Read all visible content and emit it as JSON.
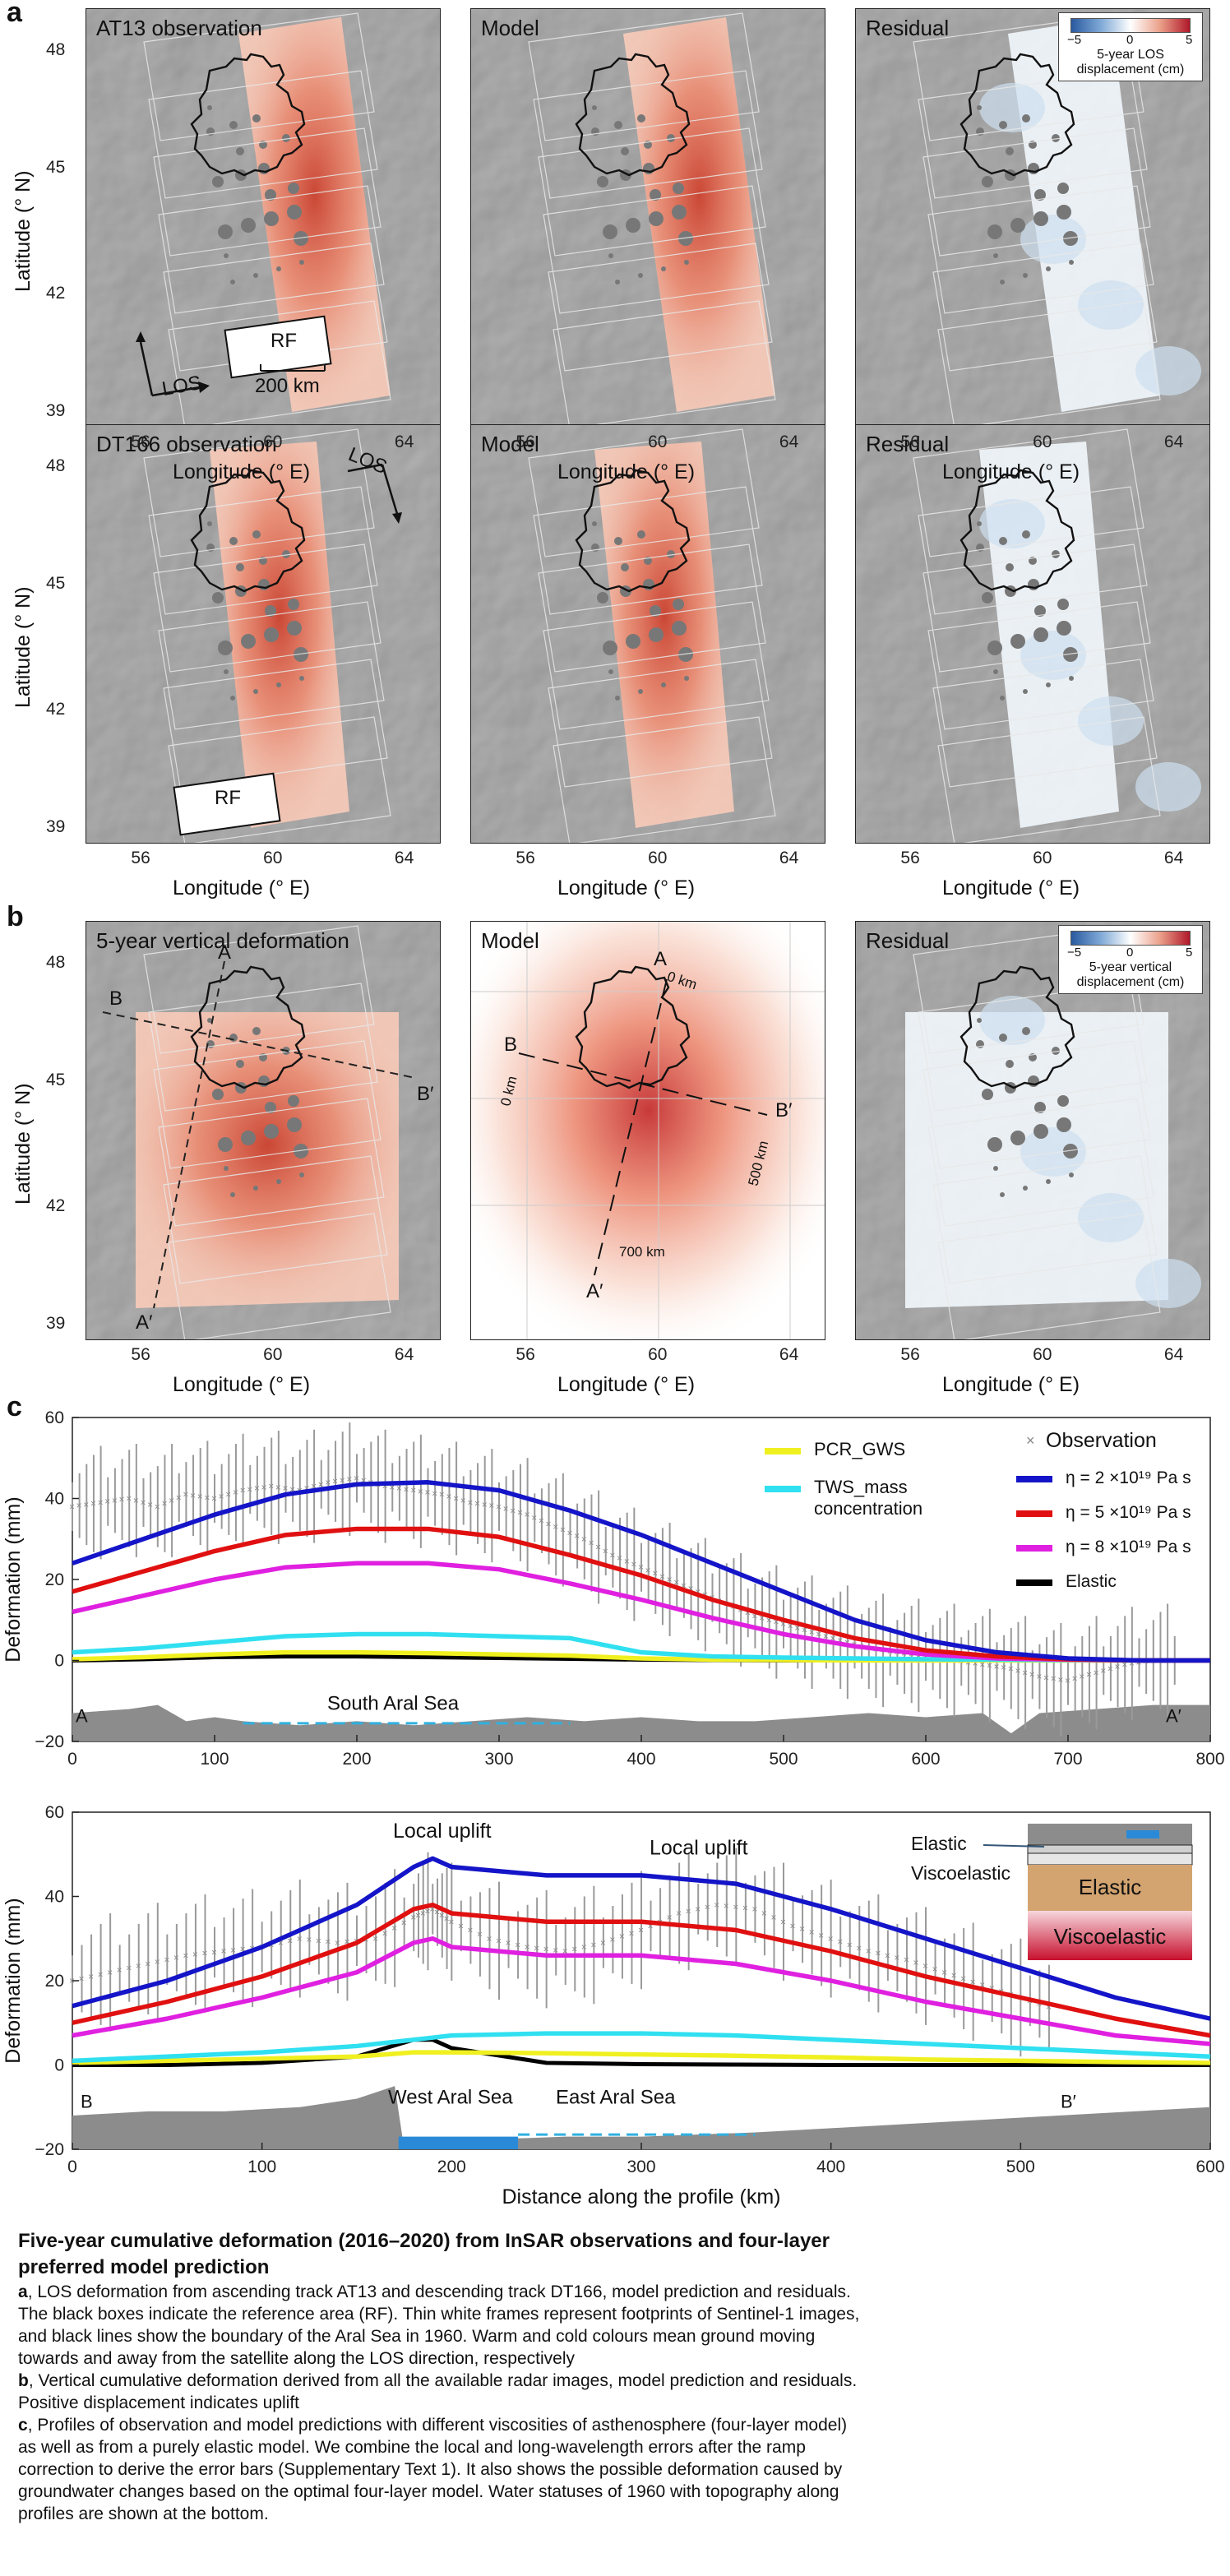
{
  "panels": {
    "a": "a",
    "b": "b",
    "c": "c"
  },
  "rowA1": {
    "titles": [
      "AT13 observation",
      "Model",
      "Residual"
    ],
    "los": "LOS",
    "rf": "RF",
    "scale": "200 km"
  },
  "rowA2": {
    "titles": [
      "DT166 observation",
      "Model",
      "Residual"
    ],
    "los": "LOS",
    "rf": "RF"
  },
  "rowB": {
    "titles": [
      "5-year vertical deformation",
      "Model",
      "Residual"
    ],
    "profile_labels": [
      "A",
      "B",
      "B′",
      "A′"
    ],
    "model_labels": {
      "a": "A",
      "b": "B",
      "bp": "B′",
      "ap": "A′",
      "km0a": "0 km",
      "km0b": "0 km",
      "km500": "500 km",
      "km700": "700 km"
    }
  },
  "colorbar_a": {
    "min": "−5",
    "mid": "0",
    "max": "5",
    "caption1": "5-year LOS",
    "caption2": "displacement (cm)"
  },
  "colorbar_b": {
    "min": "−5",
    "mid": "0",
    "max": "5",
    "caption1": "5-year vertical",
    "caption2": "displacement (cm)"
  },
  "map_axes": {
    "ylabel": "Latitude (° N)",
    "xlabel": "Longitude (° E)",
    "yticks": [
      "48",
      "45",
      "42",
      "39"
    ],
    "xticks": [
      "56",
      "60",
      "64"
    ]
  },
  "chart_data": [
    {
      "type": "line",
      "xlabel": "",
      "ylabel": "Deformation (mm)",
      "xlim": [
        0,
        800
      ],
      "ylim": [
        -20,
        60
      ],
      "xticks": [
        "0",
        "100",
        "200",
        "300",
        "400",
        "500",
        "600",
        "700",
        "800"
      ],
      "yticks": [
        "60",
        "40",
        "20",
        "0",
        "−20"
      ],
      "annotations": {
        "start": "A",
        "end": "A′",
        "sea": "South Aral Sea"
      },
      "legend": {
        "observation": "Observation",
        "pcr": "PCR_GWS",
        "tws1": "TWS_mass",
        "tws2": "concentration",
        "eta2": "η = 2 ×10¹⁹ Pa s",
        "eta5": "η = 5 ×10¹⁹ Pa s",
        "eta8": "η = 8 ×10¹⁹ Pa s",
        "elastic": "Elastic"
      },
      "x": [
        0,
        50,
        100,
        150,
        200,
        250,
        300,
        350,
        400,
        450,
        500,
        550,
        600,
        650,
        700,
        750,
        800
      ],
      "series": [
        {
          "name": "η = 2 ×10¹⁹ Pa s",
          "color": "#1414c8",
          "values": [
            24,
            30,
            36,
            41,
            43.5,
            44,
            42,
            37,
            31,
            24,
            17,
            10,
            5,
            2,
            0.5,
            0,
            0
          ]
        },
        {
          "name": "η = 5 ×10¹⁹ Pa s",
          "color": "#e01010",
          "values": [
            17,
            22,
            27,
            31,
            32.5,
            32.5,
            30.5,
            26,
            21,
            15,
            10,
            5.5,
            2.5,
            1,
            0.3,
            0,
            0
          ]
        },
        {
          "name": "η = 8 ×10¹⁹ Pa s",
          "color": "#e020e0",
          "values": [
            12,
            16,
            20,
            23,
            24,
            24,
            22.5,
            19,
            15,
            10.5,
            6.5,
            3.5,
            1.5,
            0.5,
            0.2,
            0,
            0
          ]
        },
        {
          "name": "TWS_mass concentration",
          "color": "#30e0f0",
          "values": [
            2,
            3,
            4.5,
            6,
            6.5,
            6.5,
            6,
            5.5,
            2,
            1,
            0.7,
            0.5,
            0.3,
            0.2,
            0.1,
            0,
            0
          ]
        },
        {
          "name": "PCR_GWS",
          "color": "#f0f020",
          "values": [
            0.3,
            0.8,
            1.5,
            2,
            2,
            1.8,
            1.5,
            1.2,
            0.5,
            0.2,
            0.1,
            0,
            0,
            0,
            0,
            0,
            0
          ]
        },
        {
          "name": "Elastic",
          "color": "#000000",
          "values": [
            0,
            0.3,
            0.8,
            1,
            1,
            0.8,
            0.6,
            0.4,
            0.2,
            0.1,
            0,
            0,
            0,
            0,
            0,
            0,
            0
          ]
        }
      ],
      "observation": {
        "x": [
          0,
          20,
          40,
          60,
          80,
          100,
          120,
          140,
          160,
          180,
          200,
          220,
          240,
          260,
          280,
          300,
          320,
          340,
          360,
          380,
          400,
          420,
          440,
          460,
          480,
          500,
          520,
          540,
          560,
          580,
          600,
          620,
          640,
          660,
          680,
          700,
          720,
          740,
          760,
          780
        ],
        "y": [
          38,
          39,
          40,
          38,
          41,
          40,
          42,
          43,
          42,
          44,
          45,
          43,
          42,
          41,
          39,
          38,
          36,
          33,
          30,
          26,
          23,
          20,
          17,
          14,
          11,
          9,
          7,
          5,
          3,
          2,
          1,
          0,
          -1,
          -2,
          -4,
          -5,
          -3,
          -1,
          0,
          0
        ]
      },
      "topography": {
        "x": [
          0,
          40,
          60,
          80,
          100,
          120,
          160,
          200,
          240,
          280,
          320,
          360,
          400,
          440,
          480,
          520,
          560,
          600,
          640,
          660,
          680,
          720,
          760,
          800
        ],
        "y": [
          -13,
          -12,
          -11,
          -15,
          -14,
          -15,
          -16,
          -15,
          -16,
          -15,
          -14,
          -15,
          -14,
          -15,
          -15,
          -14,
          -13,
          -14,
          -13,
          -18,
          -13,
          -12,
          -11,
          -11
        ]
      }
    },
    {
      "type": "line",
      "xlabel": "Distance along the profile (km)",
      "ylabel": "Deformation (mm)",
      "xlim": [
        0,
        600
      ],
      "ylim": [
        -20,
        60
      ],
      "xticks": [
        "0",
        "100",
        "200",
        "300",
        "400",
        "500",
        "600"
      ],
      "yticks": [
        "60",
        "40",
        "20",
        "0",
        "−20"
      ],
      "annotations": {
        "start": "B",
        "end": "B′",
        "west": "West Aral Sea",
        "east": "East Aral Sea",
        "uplift1": "Local uplift",
        "uplift2": "Local uplift",
        "inset_elastic_top": "Elastic",
        "inset_visco_top": "Viscoelastic",
        "inset_elastic": "Elastic",
        "inset_visco": "Viscoelastic"
      },
      "x": [
        0,
        50,
        100,
        150,
        180,
        190,
        200,
        250,
        300,
        350,
        400,
        450,
        500,
        550,
        600
      ],
      "series": [
        {
          "name": "η = 2 ×10¹⁹ Pa s",
          "color": "#1414c8",
          "values": [
            14,
            20,
            28,
            38,
            47,
            49,
            47,
            45,
            45,
            43,
            37,
            30,
            23,
            16,
            11
          ]
        },
        {
          "name": "η = 5 ×10¹⁹ Pa s",
          "color": "#e01010",
          "values": [
            10,
            15,
            21,
            29,
            37,
            38,
            36,
            34,
            34,
            32,
            27,
            21,
            16,
            11,
            7
          ]
        },
        {
          "name": "η = 8 ×10¹⁹ Pa s",
          "color": "#e020e0",
          "values": [
            7,
            11,
            16,
            22,
            29,
            30,
            28,
            26,
            26,
            24,
            20,
            15,
            11,
            7,
            5
          ]
        },
        {
          "name": "TWS_mass concentration",
          "color": "#30e0f0",
          "values": [
            1,
            2,
            3,
            4.5,
            6,
            6.5,
            7,
            7.5,
            7.5,
            7,
            6,
            5,
            4,
            3,
            2
          ]
        },
        {
          "name": "PCR_GWS",
          "color": "#f0f020",
          "values": [
            0.5,
            1,
            1.5,
            2,
            3,
            3,
            3,
            2.8,
            2.5,
            2.2,
            1.8,
            1.3,
            1,
            0.7,
            0.5
          ]
        },
        {
          "name": "Elastic",
          "color": "#000000",
          "values": [
            0,
            0,
            0.5,
            2,
            6,
            6,
            4,
            0.5,
            0.2,
            0.1,
            0,
            0,
            0,
            0,
            0
          ]
        }
      ],
      "observation": {
        "x": [
          0,
          20,
          40,
          60,
          80,
          100,
          120,
          140,
          160,
          180,
          190,
          200,
          220,
          240,
          260,
          280,
          300,
          320,
          340,
          360,
          380,
          400,
          420,
          440,
          460,
          480,
          500,
          520
        ],
        "y": [
          20,
          22,
          24,
          26,
          27,
          28,
          30,
          29,
          30,
          35,
          37,
          34,
          30,
          28,
          27,
          29,
          32,
          36,
          38,
          37,
          33,
          30,
          27,
          25,
          22,
          19,
          16,
          13
        ]
      },
      "topography": {
        "x": [
          0,
          40,
          80,
          120,
          150,
          170,
          175,
          180,
          200,
          260,
          300,
          360,
          400,
          440,
          480,
          520,
          560,
          600
        ],
        "y": [
          -12,
          -11,
          -11,
          -10,
          -8,
          -5,
          -20,
          -20,
          -18,
          -17,
          -17,
          -16,
          -15,
          -14,
          -13,
          -12,
          -11,
          -10
        ]
      }
    }
  ],
  "caption": {
    "title1": "Five-year cumulative deformation (2016–2020) from InSAR observations and four-layer",
    "title2": "preferred model prediction",
    "a_label": "a",
    "a1": ", LOS deformation from ascending track AT13 and descending track DT166, model prediction and residuals.",
    "a2": "The black boxes indicate the reference area (RF). Thin white frames represent footprints of Sentinel-1 images,",
    "a3": "and black lines show the boundary of the Aral Sea in 1960. Warm and cold colours mean ground moving",
    "a4": "towards and away from the satellite along the LOS direction, respectively",
    "b_label": "b",
    "b1": ", Vertical cumulative deformation derived from all the available radar images, model prediction and residuals.",
    "b2": "Positive displacement indicates uplift",
    "c_label": "c",
    "c1": ", Profiles of observation and model predictions with different viscosities of asthenosphere (four-layer model)",
    "c2": "as well as from a purely elastic model. We combine the local and long-wavelength errors after the ramp",
    "c3": "correction to derive the error bars (Supplementary Text 1). It also shows the possible deformation caused by",
    "c4": "groundwater changes based on the optimal four-layer model. Water statuses of 1960 with topography along",
    "c5": "profiles are shown at the bottom."
  }
}
